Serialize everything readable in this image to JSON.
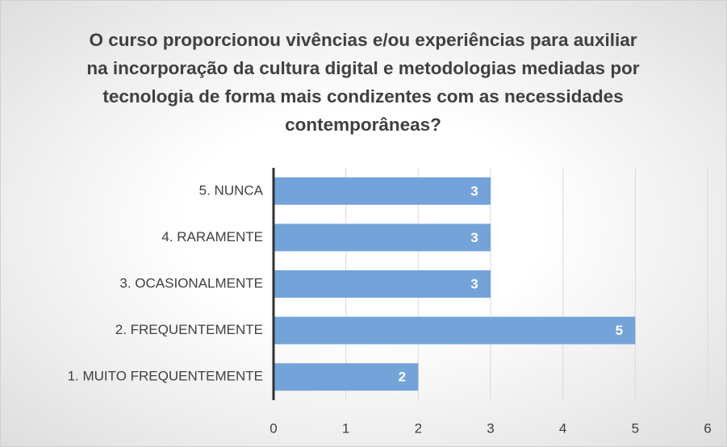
{
  "chart_data": {
    "type": "bar",
    "orientation": "horizontal",
    "title": "O curso proporcionou vivências e/ou experiências para auxiliar na incorporação da cultura digital e metodologias mediadas por tecnologia de forma mais condizentes com as necessidades contemporâneas?",
    "categories": [
      "1. MUITO FREQUENTEMENTE",
      "2. FREQUENTEMENTE",
      "3. OCASIONALMENTE",
      "4. RARAMENTE",
      "5. NUNCA"
    ],
    "values": [
      2,
      5,
      3,
      3,
      3
    ],
    "color": "#74a3d9",
    "xlim": [
      0,
      6
    ],
    "xticks": [
      0,
      1,
      2,
      3,
      4,
      5,
      6
    ],
    "grid": true
  }
}
